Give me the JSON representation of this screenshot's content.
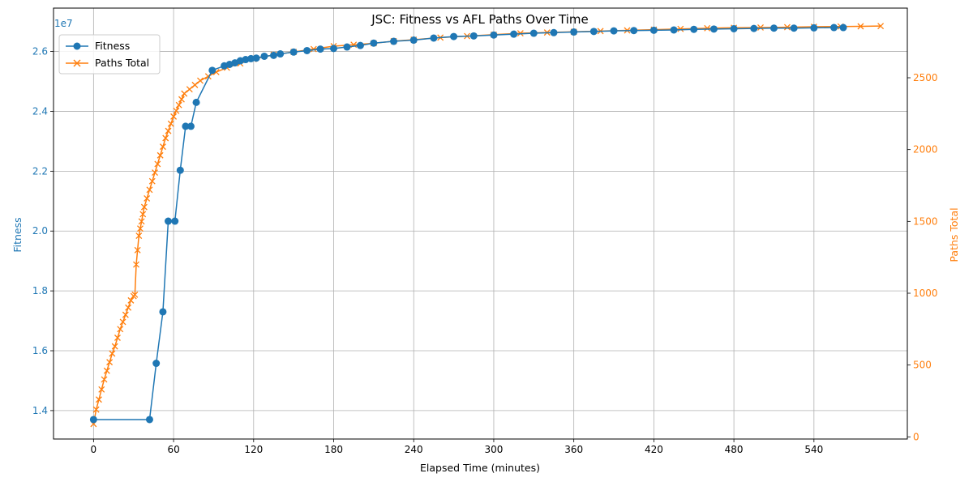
{
  "chart_data": {
    "type": "line",
    "title": "JSC: Fitness vs AFL Paths Over Time",
    "xlabel": "Elapsed Time (minutes)",
    "ylabel_left": "Fitness",
    "ylabel_right": "Paths Total",
    "exponent_label": "1e7",
    "xlim": [
      -30,
      610
    ],
    "ylim_left": [
      13050000,
      27450000
    ],
    "ylim_right": [
      -15,
      2985
    ],
    "x_ticks": [
      "0",
      "60",
      "120",
      "180",
      "240",
      "300",
      "360",
      "420",
      "480",
      "540"
    ],
    "y_left_ticks": [
      "1.4",
      "1.6",
      "1.8",
      "2.0",
      "2.2",
      "2.4",
      "2.6"
    ],
    "y_right_ticks": [
      "0",
      "500",
      "1000",
      "1500",
      "2000",
      "2500"
    ],
    "grid": true,
    "legend_position": "upper-left",
    "colors": {
      "fitness": "#1f77b4",
      "paths": "#ff7f0e"
    },
    "series": [
      {
        "name": "Fitness",
        "axis": "left",
        "marker": "circle",
        "x": [
          0,
          42,
          47,
          52,
          56,
          61,
          65,
          69,
          73,
          77,
          89,
          98,
          102,
          106,
          110,
          114,
          118,
          122,
          128,
          135,
          140,
          150,
          160,
          170,
          180,
          190,
          200,
          210,
          225,
          240,
          255,
          270,
          285,
          300,
          315,
          330,
          345,
          360,
          375,
          390,
          405,
          420,
          435,
          450,
          465,
          480,
          495,
          510,
          525,
          540,
          555,
          562
        ],
        "values": [
          13700000,
          13700000,
          15580000,
          17300000,
          20330000,
          20330000,
          22030000,
          23500000,
          23500000,
          24300000,
          25370000,
          25520000,
          25570000,
          25620000,
          25690000,
          25730000,
          25760000,
          25780000,
          25840000,
          25870000,
          25920000,
          25980000,
          26030000,
          26080000,
          26100000,
          26150000,
          26200000,
          26280000,
          26340000,
          26380000,
          26450000,
          26500000,
          26520000,
          26550000,
          26580000,
          26610000,
          26630000,
          26650000,
          26670000,
          26690000,
          26700000,
          26710000,
          26720000,
          26740000,
          26750000,
          26760000,
          26770000,
          26780000,
          26780000,
          26790000,
          26800000,
          26800000
        ]
      },
      {
        "name": "Paths Total",
        "axis": "right",
        "marker": "x",
        "x": [
          0,
          2,
          4,
          6,
          8,
          10,
          12,
          14,
          16,
          18,
          20,
          22,
          24,
          26,
          28,
          30,
          31,
          32,
          33,
          34,
          35,
          36,
          37,
          38,
          40,
          42,
          44,
          46,
          48,
          50,
          52,
          54,
          56,
          58,
          60,
          62,
          64,
          66,
          68,
          72,
          76,
          80,
          86,
          92,
          100,
          110,
          120,
          135,
          150,
          165,
          180,
          195,
          210,
          225,
          240,
          260,
          280,
          300,
          320,
          340,
          360,
          380,
          400,
          420,
          440,
          460,
          480,
          500,
          520,
          540,
          560,
          575,
          590
        ],
        "values": [
          90,
          190,
          260,
          330,
          400,
          460,
          520,
          580,
          630,
          690,
          750,
          800,
          850,
          900,
          950,
          980,
          990,
          1200,
          1300,
          1400,
          1450,
          1500,
          1550,
          1600,
          1660,
          1720,
          1780,
          1840,
          1900,
          1960,
          2020,
          2080,
          2130,
          2180,
          2230,
          2270,
          2310,
          2350,
          2390,
          2420,
          2450,
          2480,
          2510,
          2540,
          2570,
          2600,
          2630,
          2660,
          2680,
          2700,
          2720,
          2730,
          2740,
          2755,
          2765,
          2780,
          2790,
          2800,
          2810,
          2815,
          2820,
          2825,
          2830,
          2835,
          2840,
          2845,
          2848,
          2850,
          2852,
          2855,
          2857,
          2858,
          2860
        ]
      }
    ]
  }
}
